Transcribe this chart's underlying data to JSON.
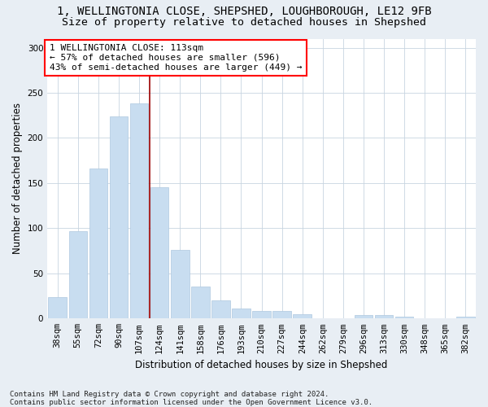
{
  "title_line1": "1, WELLINGTONIA CLOSE, SHEPSHED, LOUGHBOROUGH, LE12 9FB",
  "title_line2": "Size of property relative to detached houses in Shepshed",
  "xlabel": "Distribution of detached houses by size in Shepshed",
  "ylabel": "Number of detached properties",
  "bar_color": "#c8ddf0",
  "bar_edge_color": "#aec8e0",
  "categories": [
    "38sqm",
    "55sqm",
    "72sqm",
    "90sqm",
    "107sqm",
    "124sqm",
    "141sqm",
    "158sqm",
    "176sqm",
    "193sqm",
    "210sqm",
    "227sqm",
    "244sqm",
    "262sqm",
    "279sqm",
    "296sqm",
    "313sqm",
    "330sqm",
    "348sqm",
    "365sqm",
    "382sqm"
  ],
  "values": [
    24,
    97,
    166,
    224,
    238,
    145,
    76,
    35,
    20,
    11,
    8,
    8,
    5,
    0,
    0,
    4,
    4,
    2,
    0,
    0,
    2
  ],
  "ylim": [
    0,
    310
  ],
  "yticks": [
    0,
    50,
    100,
    150,
    200,
    250,
    300
  ],
  "property_line_x": 4.5,
  "annotation_text_line1": "1 WELLINGTONIA CLOSE: 113sqm",
  "annotation_text_line2": "← 57% of detached houses are smaller (596)",
  "annotation_text_line3": "43% of semi-detached houses are larger (449) →",
  "footer_line1": "Contains HM Land Registry data © Crown copyright and database right 2024.",
  "footer_line2": "Contains public sector information licensed under the Open Government Licence v3.0.",
  "background_color": "#e8eef4",
  "plot_bg_color": "#ffffff",
  "grid_color": "#c8d4e0",
  "title_fontsize": 10,
  "subtitle_fontsize": 9.5,
  "axis_label_fontsize": 8.5,
  "tick_fontsize": 7.5,
  "annotation_fontsize": 8,
  "footer_fontsize": 6.5
}
